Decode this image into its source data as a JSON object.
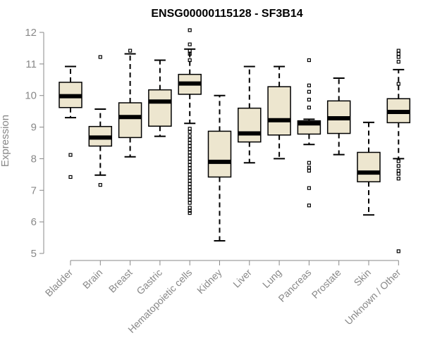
{
  "chart_data": {
    "type": "box",
    "title": "ENSG00000115128 - SF3B14",
    "xlabel": "",
    "ylabel": "Expression",
    "ylim": [
      5,
      12
    ],
    "yticks": [
      5,
      6,
      7,
      8,
      9,
      10,
      11,
      12
    ],
    "grid": false,
    "legend": "none",
    "box_fill_color": "#ede6cf",
    "box_edge_color": "#000000",
    "median_color": "#000000",
    "axis_color": "#888888",
    "categories": [
      "Bladder",
      "Brain",
      "Breast",
      "Gastric",
      "Hematopoietic cells",
      "Kidney",
      "Liver",
      "Lung",
      "Pancreas",
      "Prostate",
      "Skin",
      "Unknown / Other"
    ],
    "boxes": [
      {
        "category": "Bladder",
        "whisker_low": 9.3,
        "q1": 9.62,
        "median": 9.98,
        "q3": 10.42,
        "whisker_high": 10.92,
        "outliers": [
          8.12,
          7.42
        ]
      },
      {
        "category": "Brain",
        "whisker_low": 7.48,
        "q1": 8.4,
        "median": 8.67,
        "q3": 9.02,
        "whisker_high": 9.57,
        "outliers": [
          11.22,
          7.17
        ]
      },
      {
        "category": "Breast",
        "whisker_low": 8.06,
        "q1": 8.67,
        "median": 9.32,
        "q3": 9.77,
        "whisker_high": 11.32,
        "outliers": [
          11.42
        ]
      },
      {
        "category": "Gastric",
        "whisker_low": 8.71,
        "q1": 9.03,
        "median": 9.81,
        "q3": 10.18,
        "whisker_high": 11.12,
        "outliers": []
      },
      {
        "category": "Hematopoietic cells",
        "whisker_low": 9.12,
        "q1": 10.04,
        "median": 10.38,
        "q3": 10.67,
        "whisker_high": 11.47,
        "outliers": [
          12.07,
          11.62,
          11.42,
          11.32,
          11.12,
          8.95,
          8.85,
          8.72,
          8.6,
          8.5,
          8.4,
          8.3,
          8.2,
          8.1,
          8.0,
          7.9,
          7.8,
          7.7,
          7.6,
          7.5,
          7.4,
          7.3,
          7.2,
          7.1,
          7.0,
          6.9,
          6.8,
          6.7,
          6.6,
          6.45,
          6.35,
          6.28
        ]
      },
      {
        "category": "Kidney",
        "whisker_low": 5.4,
        "q1": 7.42,
        "median": 7.9,
        "q3": 8.87,
        "whisker_high": 10.0,
        "outliers": []
      },
      {
        "category": "Liver",
        "whisker_low": 7.87,
        "q1": 8.53,
        "median": 8.8,
        "q3": 9.6,
        "whisker_high": 10.92,
        "outliers": []
      },
      {
        "category": "Lung",
        "whisker_low": 8.0,
        "q1": 8.75,
        "median": 9.22,
        "q3": 10.28,
        "whisker_high": 10.92,
        "outliers": []
      },
      {
        "category": "Pancreas",
        "whisker_low": 8.45,
        "q1": 8.78,
        "median": 9.12,
        "q3": 9.2,
        "whisker_high": 9.25,
        "outliers": [
          11.12,
          10.32,
          10.12,
          9.87,
          9.62,
          7.87,
          7.72,
          7.62,
          7.07,
          6.52
        ]
      },
      {
        "category": "Prostate",
        "whisker_low": 8.13,
        "q1": 8.8,
        "median": 9.28,
        "q3": 9.83,
        "whisker_high": 10.55,
        "outliers": []
      },
      {
        "category": "Skin",
        "whisker_low": 6.22,
        "q1": 7.27,
        "median": 7.56,
        "q3": 8.2,
        "whisker_high": 9.15,
        "outliers": []
      },
      {
        "category": "Unknown / Other",
        "whisker_low": 8.0,
        "q1": 9.14,
        "median": 9.48,
        "q3": 9.9,
        "whisker_high": 10.82,
        "outliers": [
          11.42,
          11.32,
          11.22,
          11.07,
          10.37,
          7.92,
          7.77,
          7.62,
          7.52,
          7.37,
          5.07
        ]
      }
    ]
  }
}
